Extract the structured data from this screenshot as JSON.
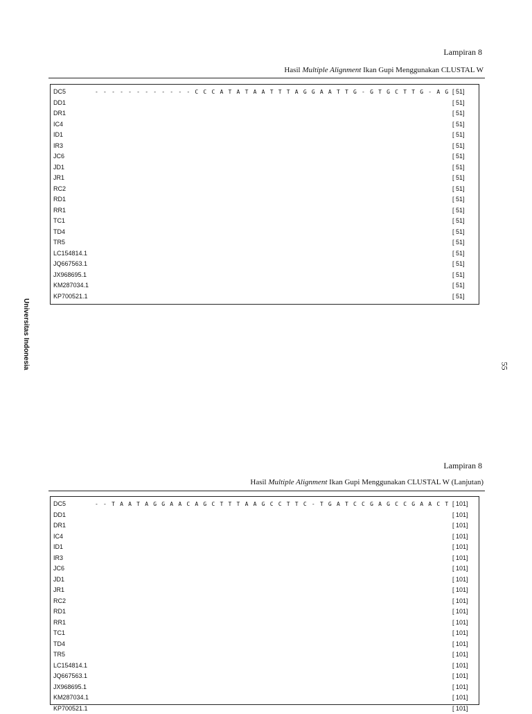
{
  "side_label": "Universitas Indonesia",
  "page_number": "55",
  "sections": [
    {
      "appendix_label": "Lampiran 8",
      "title_prefix": "Hasil ",
      "title_italic": "Multiple Alignment",
      "title_suffix": " Ikan Gupi Menggunakan CLUSTAL W",
      "rows": [
        {
          "name": "DC5",
          "sequence": "- - - - - - - - - - - - C C C A T A T A A T T T A G G A A T T G - G T G C T T G - A G C C G G A A",
          "count": "[ 51]"
        },
        {
          "name": "DD1",
          "sequence": "",
          "count": "[ 51]"
        },
        {
          "name": "DR1",
          "sequence": "",
          "count": "[ 51]"
        },
        {
          "name": "IC4",
          "sequence": "",
          "count": "[ 51]"
        },
        {
          "name": "ID1",
          "sequence": "",
          "count": "[ 51]"
        },
        {
          "name": "IR3",
          "sequence": "",
          "count": "[ 51]"
        },
        {
          "name": "JC6",
          "sequence": "",
          "count": "[ 51]"
        },
        {
          "name": "JD1",
          "sequence": "",
          "count": "[ 51]"
        },
        {
          "name": "JR1",
          "sequence": "",
          "count": "[ 51]"
        },
        {
          "name": "RC2",
          "sequence": "",
          "count": "[ 51]"
        },
        {
          "name": "RD1",
          "sequence": "",
          "count": "[ 51]"
        },
        {
          "name": "RR1",
          "sequence": "",
          "count": "[ 51]"
        },
        {
          "name": "TC1",
          "sequence": "",
          "count": "[ 51]"
        },
        {
          "name": "TD4",
          "sequence": "",
          "count": "[ 51]"
        },
        {
          "name": "TR5",
          "sequence": "",
          "count": "[ 51]"
        },
        {
          "name": "LC154814.1",
          "sequence": "",
          "count": "[ 51]"
        },
        {
          "name": "JQ667563.1",
          "sequence": "",
          "count": "[ 51]"
        },
        {
          "name": "JX968695.1",
          "sequence": "",
          "count": "[ 51]"
        },
        {
          "name": "KM287034.1",
          "sequence": "",
          "count": "[ 51]"
        },
        {
          "name": "KP700521.1",
          "sequence": "",
          "count": "[ 51]"
        }
      ]
    },
    {
      "appendix_label": "Lampiran 8",
      "title_prefix": "Hasil ",
      "title_italic": "Multiple Alignment",
      "title_suffix": " Ikan Gupi Menggunakan CLUSTAL W (Lanjutan)",
      "rows": [
        {
          "name": "DC5",
          "sequence": "- - T A A T A G G A A C A G C T T T A A G C C T T C - T G A T C C G A G C C G A A C T C A G C C A A",
          "count": "[ 101]"
        },
        {
          "name": "DD1",
          "sequence": "",
          "count": "[ 101]"
        },
        {
          "name": "DR1",
          "sequence": "",
          "count": "[ 101]"
        },
        {
          "name": "IC4",
          "sequence": "",
          "count": "[ 101]"
        },
        {
          "name": "ID1",
          "sequence": "",
          "count": "[ 101]"
        },
        {
          "name": "IR3",
          "sequence": "",
          "count": "[ 101]"
        },
        {
          "name": "JC6",
          "sequence": "",
          "count": "[ 101]"
        },
        {
          "name": "JD1",
          "sequence": "",
          "count": "[ 101]"
        },
        {
          "name": "JR1",
          "sequence": "",
          "count": "[ 101]"
        },
        {
          "name": "RC2",
          "sequence": "",
          "count": "[ 101]"
        },
        {
          "name": "RD1",
          "sequence": "",
          "count": "[ 101]"
        },
        {
          "name": "RR1",
          "sequence": "",
          "count": "[ 101]"
        },
        {
          "name": "TC1",
          "sequence": "",
          "count": "[ 101]"
        },
        {
          "name": "TD4",
          "sequence": "",
          "count": "[ 101]"
        },
        {
          "name": "TR5",
          "sequence": "",
          "count": "[ 101]"
        },
        {
          "name": "LC154814.1",
          "sequence": "",
          "count": "[ 101]"
        },
        {
          "name": "JQ667563.1",
          "sequence": "",
          "count": "[ 101]"
        },
        {
          "name": "JX968695.1",
          "sequence": "",
          "count": "[ 101]"
        },
        {
          "name": "KM287034.1",
          "sequence": "",
          "count": "[ 101]"
        },
        {
          "name": "KP700521.1",
          "sequence": "",
          "count": "[ 101]"
        }
      ]
    }
  ]
}
